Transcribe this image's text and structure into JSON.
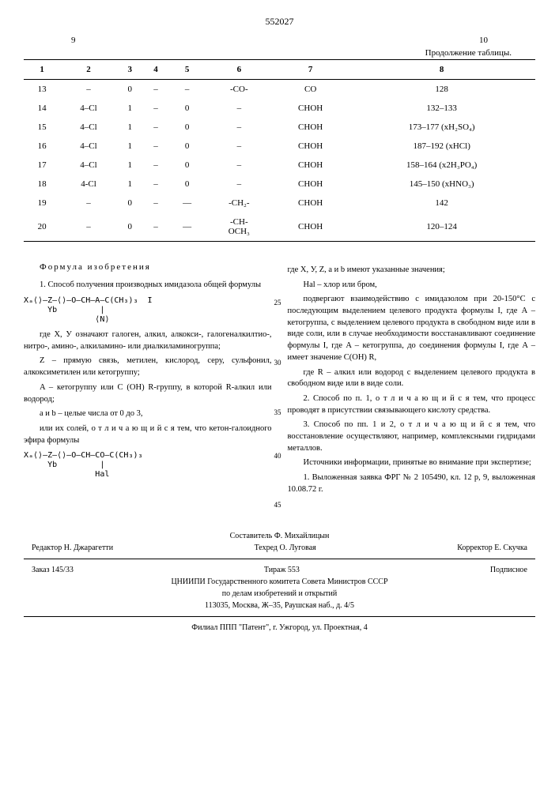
{
  "patent_number": "552027",
  "page_left": "9",
  "page_right": "10",
  "table_continuation": "Продолжение таблицы.",
  "table": {
    "headers": [
      "1",
      "2",
      "3",
      "4",
      "5",
      "6",
      "7",
      "8"
    ],
    "rows": [
      [
        "13",
        "–",
        "0",
        "–",
        "–",
        "-CO-",
        "CO",
        "128"
      ],
      [
        "14",
        "4–Cl",
        "1",
        "–",
        "0",
        "–",
        "CHOH",
        "132–133"
      ],
      [
        "15",
        "4–Cl",
        "1",
        "–",
        "0",
        "–",
        "CHOH",
        "173–177 (xH₂SO₄)"
      ],
      [
        "16",
        "4–Cl",
        "1",
        "–",
        "0",
        "–",
        "CHOH",
        "187–192 (xHCl)"
      ],
      [
        "17",
        "4–Cl",
        "1",
        "–",
        "0",
        "–",
        "CHOH",
        "158–164 (x2H₃PO₄)"
      ],
      [
        "18",
        "4-Cl",
        "1",
        "–",
        "0",
        "–",
        "CHOH",
        "145–150 (xHNO₃)"
      ],
      [
        "19",
        "–",
        "0",
        "–",
        "—",
        "-CH₂-",
        "CHOH",
        "142"
      ],
      [
        "20",
        "–",
        "0",
        "–",
        "—",
        "-CH-\nOCH₃",
        "CHOH",
        "120–124"
      ]
    ]
  },
  "claims_title": "Формула изобретения",
  "claim1_intro": "1. Способ получения производных имидазола общей формулы",
  "formula1_lines": [
    "Xₐ⟨⟩—Z—⟨⟩—O—CH—A—C(CH₃)₃  I",
    "     Yb         |",
    "               ⟨N⟩"
  ],
  "claim1_p1": "где X, У означают галоген, алкил, алкокси-, галогеналкилтио-, нитро-, амино-, алкиламино- или диалкиламиногруппа;",
  "claim1_p2": "Z – прямую связь, метилен, кислород, серу, сульфонил, алкоксиметилен или кетогруппу;",
  "claim1_p3": "A – кетогруппу или C (OH) R-группу, в которой R-алкил или водород;",
  "claim1_p4": "a и b – целые числа от 0 до 3,",
  "claim1_p5": "или их солей, о т л и ч а ю щ и й с я  тем, что кетон-галоидного эфира формулы",
  "formula2_lines": [
    "Xₐ⟨⟩—Z—⟨⟩—O—CH—CO—C(CH₃)₃",
    "     Yb         |",
    "               Hal"
  ],
  "col2_p1": "где X, У, Z, a и b имеют указанные значения;",
  "col2_p2": "Hal – хлор или бром,",
  "col2_p3": "подвергают взаимодействию с имидазолом при 20-150°C с последующим выделением целевого продукта формулы I, где A – кетогруппа, с выделением целевого продукта в свободном виде или в виде соли, или в случае необходимости восстанавливают соединение формулы I, где A – кетогруппа, до соединения формулы I, где A – имеет значение C(OH) R,",
  "col2_p4": "где R – алкил или водород с выделением целевого продукта в свободном виде или в виде соли.",
  "claim2": "2. Способ по п. 1, о т л и ч а ю щ и й с я  тем, что процесс проводят в присутствии связывающего кислоту средства.",
  "claim3": "3. Способ по пп. 1 и 2, о т л и ч а ю щ и й с я тем, что восстановление осуществляют, например, комплексными гидридами металлов.",
  "sources_title": "Источники информации, принятые во внимание при экспертизе;",
  "source1": "1. Выложенная заявка ФРГ № 2 105490, кл. 12 p, 9, выложенная 10.08.72 г.",
  "line_numbers": [
    "25",
    "30",
    "35",
    "40",
    "45"
  ],
  "footer": {
    "compiler": "Составитель Ф. Михайлицын",
    "editor": "Редактор Н. Джарагетти",
    "techred": "Техред О. Луговая",
    "corrector": "Корректор Е. Скучка",
    "order": "Заказ 145/33",
    "tirage": "Тираж 553",
    "subscription": "Подписное",
    "org1": "ЦНИИПИ Государственного комитета Совета Министров СССР",
    "org2": "по делам изобретений и открытий",
    "addr1": "113035, Москва, Ж–35, Раушская наб., д. 4/5",
    "addr2": "Филиал ППП \"Патент\", г. Ужгород, ул. Проектная, 4"
  }
}
